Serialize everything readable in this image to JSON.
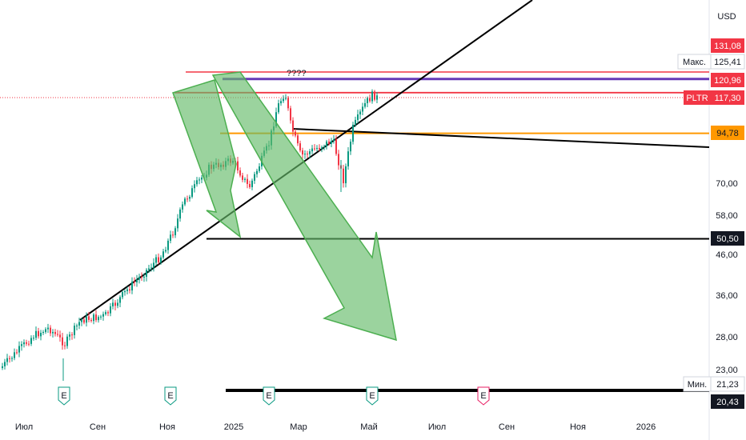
{
  "chart_data": {
    "type": "candlestick",
    "symbol": "PLTR",
    "currency": "USD",
    "y_scale": "log",
    "y_ticks": [
      "21,23",
      "23,00",
      "28,00",
      "36,00",
      "46,00",
      "58,00",
      "70,00",
      "94,78",
      "117,30",
      "120,96",
      "125,41",
      "131,08"
    ],
    "x_ticks": [
      "Июл",
      "Сен",
      "Ноя",
      "2025",
      "Мар",
      "Май",
      "Июл",
      "Сен",
      "Ноя",
      "2026"
    ],
    "price_labels": [
      {
        "id": "top-purple",
        "text": "131,08",
        "color": "#f23645"
      },
      {
        "id": "max",
        "text": "125,41",
        "prefix": "Макс.",
        "color": "#e0e3eb"
      },
      {
        "id": "red-line",
        "text": "120,96",
        "color": "#f23645"
      },
      {
        "id": "last",
        "text": "117,30",
        "prefix": "PLTR",
        "color": "#f23645"
      },
      {
        "id": "orange",
        "text": "94,78",
        "color": "#ff9800"
      },
      {
        "id": "support",
        "text": "50,50",
        "color": "#131722"
      },
      {
        "id": "min",
        "text": "21,23",
        "prefix": "Мин.",
        "color": "#e0e3eb"
      },
      {
        "id": "bottom",
        "text": "20,43",
        "color": "#131722"
      }
    ],
    "annotation": "????",
    "earnings_markers": [
      "E",
      "E",
      "E",
      "E",
      "E"
    ],
    "colors": {
      "up": "#089981",
      "down": "#f23645",
      "purple": "#673ab7",
      "red": "#f23645",
      "orange": "#ff9800",
      "arrow": "#66bb6a"
    }
  }
}
